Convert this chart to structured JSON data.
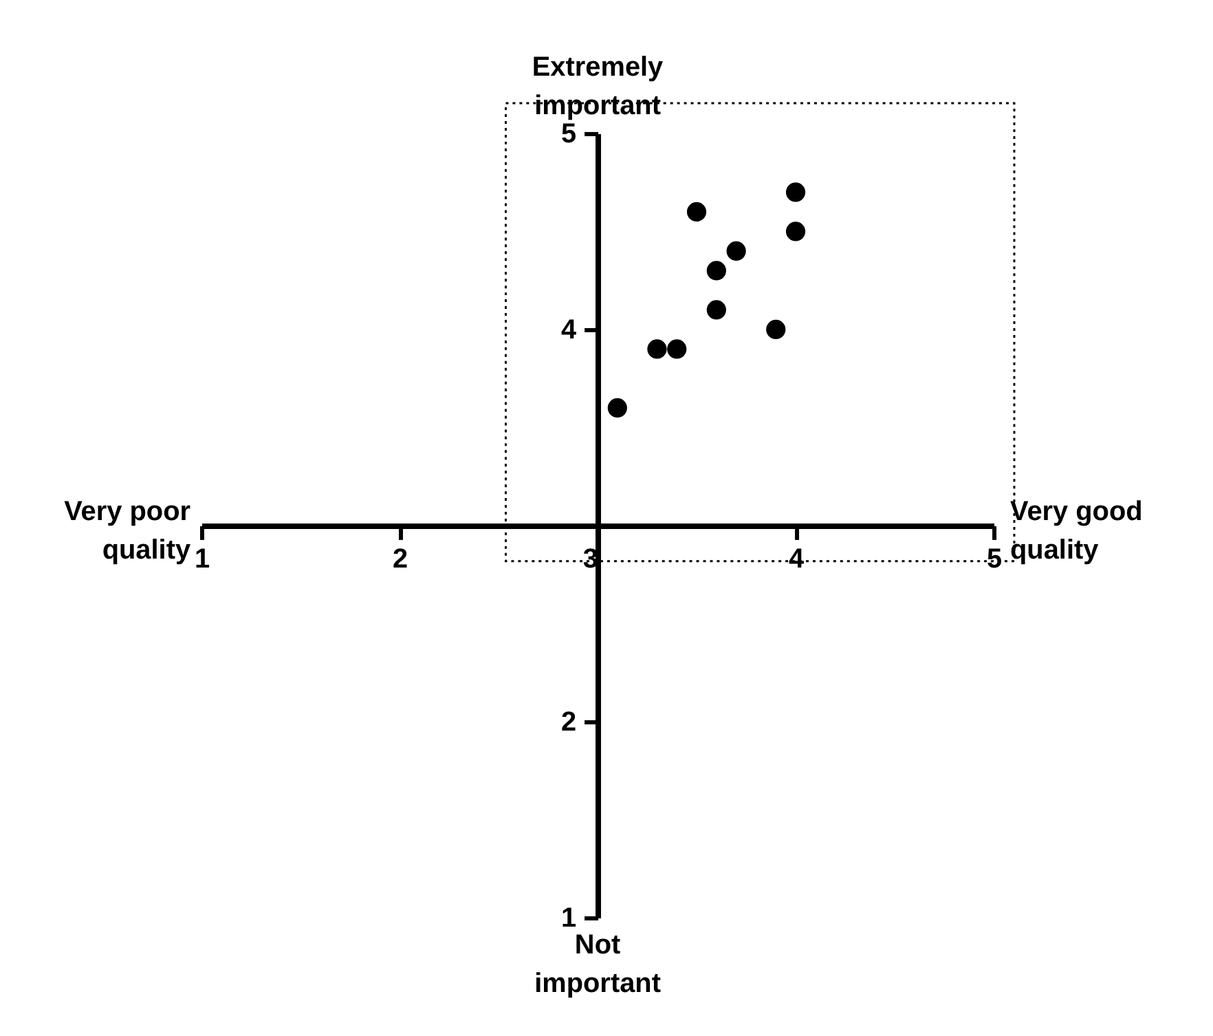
{
  "chart_data": {
    "type": "scatter",
    "x": [
      3.1,
      3.3,
      3.4,
      3.5,
      3.6,
      3.6,
      3.7,
      3.9,
      4.0,
      4.0
    ],
    "values": [
      3.6,
      3.9,
      3.9,
      4.6,
      4.3,
      4.1,
      4.4,
      4.0,
      4.7,
      4.5
    ],
    "color": "#000000",
    "marker": "circle",
    "xlim": [
      1,
      5
    ],
    "ylim": [
      1,
      5
    ],
    "xticks": [
      1,
      2,
      3,
      4,
      5
    ],
    "yticks": [
      1,
      2,
      4,
      5
    ],
    "grid": false,
    "legend": false,
    "annotations": [
      "Extremely important",
      "Not important",
      "Very poor quality",
      "Very good quality"
    ]
  }
}
